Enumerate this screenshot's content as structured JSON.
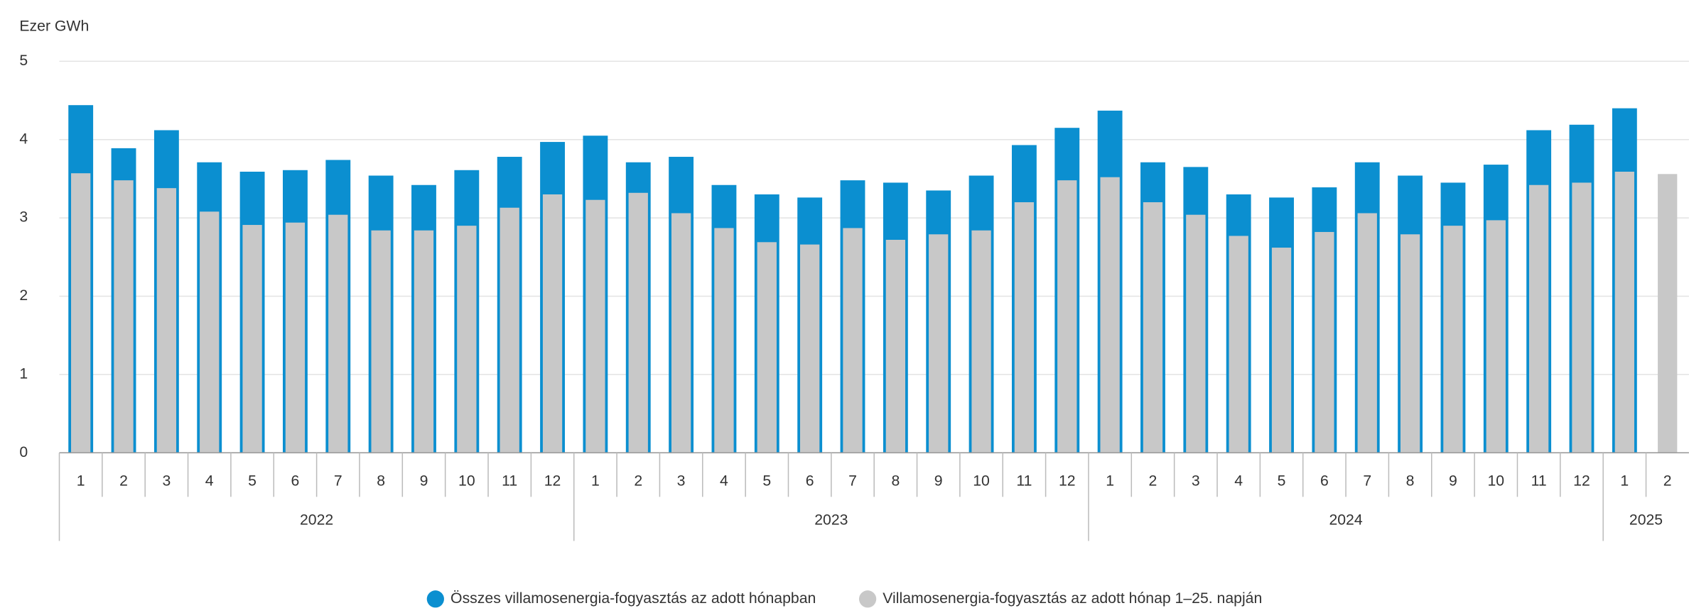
{
  "chart_data": {
    "type": "bar",
    "y_label": "Ezer GWh",
    "groups": [
      {
        "label": "2022",
        "categories": [
          "1",
          "2",
          "3",
          "4",
          "5",
          "6",
          "7",
          "8",
          "9",
          "10",
          "11",
          "12"
        ]
      },
      {
        "label": "2023",
        "categories": [
          "1",
          "2",
          "3",
          "4",
          "5",
          "6",
          "7",
          "8",
          "9",
          "10",
          "11",
          "12"
        ]
      },
      {
        "label": "2024",
        "categories": [
          "1",
          "2",
          "3",
          "4",
          "5",
          "6",
          "7",
          "8",
          "9",
          "10",
          "11",
          "12"
        ]
      },
      {
        "label": "2025",
        "categories": [
          "1",
          "2"
        ]
      }
    ],
    "series": [
      {
        "name": "Összes villamosenergia-fogyasztás az adott hónapban",
        "color": "#0b8fd0",
        "values": [
          4.44,
          3.89,
          4.12,
          3.71,
          3.59,
          3.61,
          3.74,
          3.54,
          3.42,
          3.61,
          3.78,
          3.97,
          4.05,
          3.71,
          3.78,
          3.42,
          3.3,
          3.26,
          3.48,
          3.45,
          3.35,
          3.54,
          3.93,
          4.15,
          4.37,
          3.71,
          3.65,
          3.3,
          3.26,
          3.39,
          3.71,
          3.54,
          3.45,
          3.68,
          4.12,
          4.19,
          4.4,
          null
        ]
      },
      {
        "name": "Villamosenergia-fogyasztás az adott hónap 1–25. napján",
        "color": "#c8c8c8",
        "values": [
          3.57,
          3.48,
          3.38,
          3.08,
          2.91,
          2.94,
          3.04,
          2.84,
          2.84,
          2.9,
          3.13,
          3.3,
          3.23,
          3.32,
          3.06,
          2.87,
          2.69,
          2.66,
          2.87,
          2.72,
          2.79,
          2.84,
          3.2,
          3.48,
          3.52,
          3.2,
          3.04,
          2.77,
          2.62,
          2.82,
          3.06,
          2.79,
          2.9,
          2.97,
          3.42,
          3.45,
          3.59,
          3.56
        ]
      }
    ],
    "ylim": [
      0,
      5
    ],
    "yticks": [
      0,
      1,
      2,
      3,
      4,
      5
    ],
    "grid": true,
    "legend": "bottom"
  }
}
